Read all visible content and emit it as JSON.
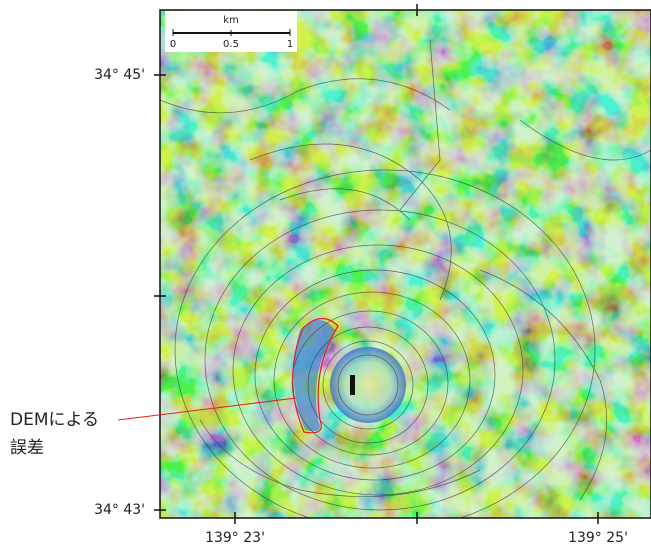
{
  "scale_bar": {
    "unit": "km",
    "labels": [
      "0",
      "0.5",
      "1"
    ]
  },
  "latitude_labels": [
    "34° 45'",
    "34° 43'"
  ],
  "longitude_labels": [
    "139° 23'",
    "139° 25'"
  ],
  "annotation": {
    "lines": [
      "DEMによる",
      "誤差"
    ]
  }
}
